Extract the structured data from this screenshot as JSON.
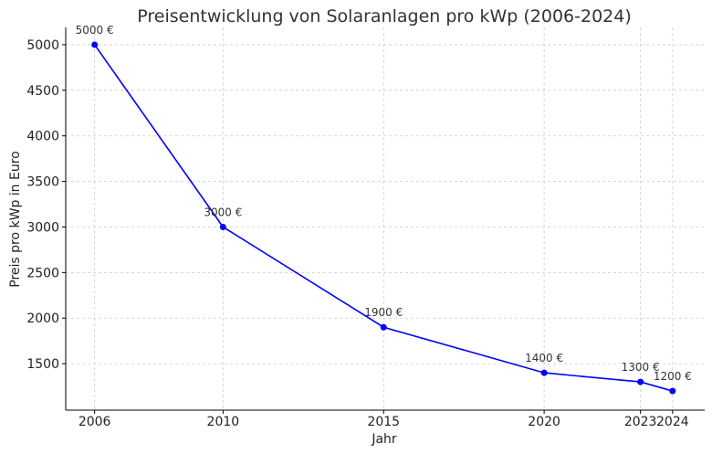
{
  "chart_data": {
    "type": "line",
    "title": "Preisentwicklung von Solaranlagen pro kWp (2006-2024)",
    "xlabel": "Jahr",
    "ylabel": "Preis pro kWp in Euro",
    "x": [
      2006,
      2010,
      2015,
      2020,
      2023,
      2024
    ],
    "y": [
      5000,
      3000,
      1900,
      1400,
      1300,
      1200
    ],
    "data_labels": [
      "5000 €",
      "3000 €",
      "1900 €",
      "1400 €",
      "1300 €",
      "1200 €"
    ],
    "xticks": [
      "2006",
      "2010",
      "2015",
      "2020",
      "2023",
      "2024"
    ],
    "yticks": [
      "1500",
      "2000",
      "2500",
      "3000",
      "3500",
      "4000",
      "4500",
      "5000"
    ],
    "xlim": [
      2005.1,
      2025
    ],
    "ylim": [
      990,
      5190
    ],
    "grid": true,
    "line_color": "#0000ff",
    "marker": "circle"
  }
}
